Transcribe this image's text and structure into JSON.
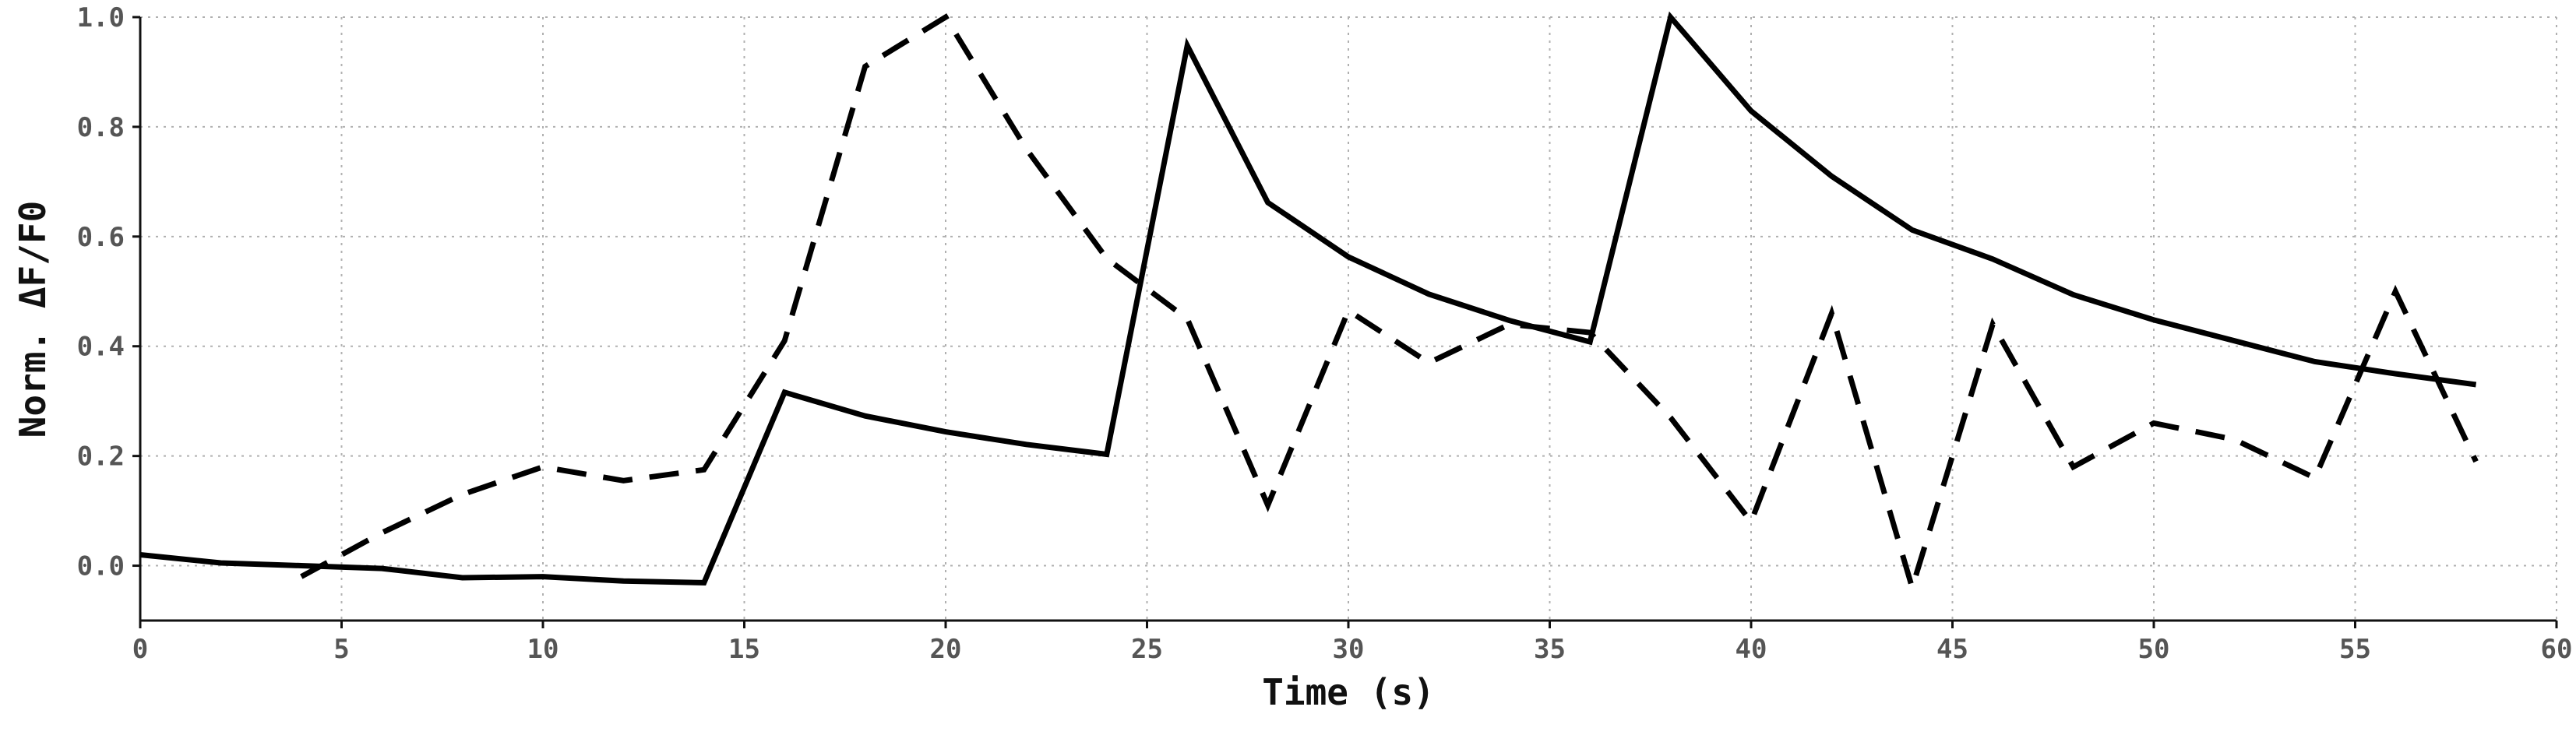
{
  "chart_data": {
    "type": "line",
    "title": "",
    "xlabel": "Time (s)",
    "ylabel": "Norm. ΔF/F0",
    "xlim": [
      0,
      60
    ],
    "ylim": [
      -0.1,
      1.0
    ],
    "xticks": [
      0,
      5,
      10,
      15,
      20,
      25,
      30,
      35,
      40,
      45,
      50,
      55,
      60
    ],
    "yticks": [
      0.0,
      0.2,
      0.4,
      0.6,
      0.8,
      1.0
    ],
    "xtick_labels": [
      "0",
      "5",
      "10",
      "15",
      "20",
      "25",
      "30",
      "35",
      "40",
      "45",
      "50",
      "55",
      "60"
    ],
    "ytick_labels": [
      "0.0",
      "0.2",
      "0.4",
      "0.6",
      "0.8",
      "1.0"
    ],
    "grid": true,
    "series": [
      {
        "style": "solid",
        "color": "#000000",
        "x": [
          0,
          2,
          4,
          6,
          8,
          10,
          12,
          14,
          16,
          18,
          20,
          22,
          24,
          26,
          28,
          30,
          32,
          34,
          36,
          38,
          40,
          42,
          44,
          46,
          48,
          50,
          52,
          54,
          56,
          58
        ],
        "y": [
          0.02,
          0.005,
          0.0,
          -0.005,
          -0.022,
          -0.02,
          -0.028,
          -0.031,
          0.316,
          0.273,
          0.244,
          0.221,
          0.203,
          0.948,
          0.662,
          0.563,
          0.495,
          0.447,
          0.408,
          1.0,
          0.829,
          0.71,
          0.612,
          0.559,
          0.494,
          0.448,
          0.41,
          0.372,
          0.35,
          0.33
        ]
      },
      {
        "style": "dashed",
        "color": "#000000",
        "x": [
          4,
          6,
          8,
          10,
          12,
          14,
          16,
          18,
          20,
          22,
          24,
          26,
          28,
          30,
          32,
          34,
          36,
          38,
          40,
          42,
          44,
          46,
          48,
          50,
          52,
          54,
          56,
          58
        ],
        "y": [
          -0.02,
          0.06,
          0.13,
          0.18,
          0.155,
          0.175,
          0.41,
          0.91,
          1.0,
          0.76,
          0.56,
          0.45,
          0.11,
          0.465,
          0.37,
          0.44,
          0.425,
          0.27,
          0.08,
          0.46,
          -0.04,
          0.44,
          0.18,
          0.26,
          0.23,
          0.16,
          0.5,
          0.19
        ]
      }
    ]
  }
}
